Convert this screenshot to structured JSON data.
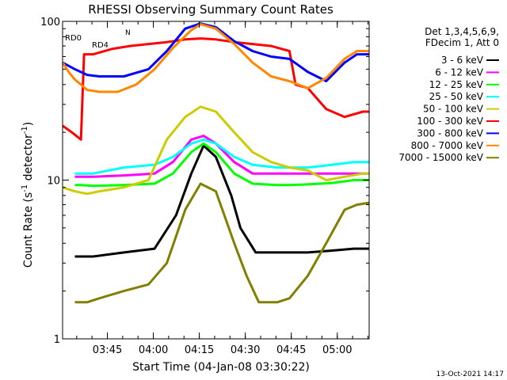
{
  "chart_data": {
    "type": "line",
    "title": "RHESSI Observing Summary Count Rates",
    "xlabel": "Start Time (04-Jan-08 03:30:22)",
    "ylabel": "Count Rate (s⁻¹ detector⁻¹)",
    "ylabel_main": "Count Rate (s",
    "ylabel_sup": "-1",
    "ylabel_tail": " detector",
    "ylabel_sup2": "-1",
    "ylabel_end": ")",
    "yscale": "log",
    "ylim": [
      1,
      100
    ],
    "xlim_minutes": [
      0,
      100
    ],
    "y_tick_labels": [
      "1",
      "10",
      "100"
    ],
    "x_tick_labels": [
      "03:45",
      "04:00",
      "04:15",
      "04:30",
      "04:45",
      "05:00"
    ],
    "x_tick_minutes": [
      14.6,
      29.6,
      44.6,
      59.6,
      74.6,
      89.6
    ],
    "legend_header": [
      "Det 1,3,4,5,6,9,",
      "FDecim 1, Att 0"
    ],
    "legend_placement": "right",
    "flag_labels": [
      "RD0",
      "RD4",
      "N"
    ],
    "date_stamp": "13-Oct-2021 14:17",
    "series": [
      {
        "name": "3 - 6 keV",
        "color": "#000000",
        "x": [
          4,
          10,
          20,
          30,
          37,
          42,
          46,
          50,
          55,
          58,
          63,
          70,
          74,
          80,
          88,
          95,
          100
        ],
        "y": [
          3.3,
          3.3,
          3.5,
          3.7,
          6,
          11,
          16.5,
          14,
          8,
          5,
          3.5,
          3.5,
          3.5,
          3.5,
          3.6,
          3.7,
          3.7
        ]
      },
      {
        "name": "6 - 12 keV",
        "color": "#ff00ff",
        "x": [
          4,
          10,
          20,
          30,
          36,
          42,
          46,
          50,
          56,
          62,
          70,
          74,
          80,
          88,
          95,
          100
        ],
        "y": [
          10.5,
          10.5,
          10.7,
          11,
          13,
          18,
          19,
          17,
          13,
          11,
          11,
          11,
          11,
          11,
          11,
          11
        ]
      },
      {
        "name": "12 - 25 keV",
        "color": "#00ff00",
        "x": [
          4,
          6,
          10,
          20,
          30,
          36,
          42,
          46,
          50,
          56,
          62,
          70,
          74,
          80,
          88,
          95,
          100
        ],
        "y": [
          9.3,
          9.3,
          9.2,
          9.3,
          9.5,
          11,
          15,
          17,
          15,
          11,
          9.5,
          9.3,
          9.3,
          9.4,
          9.6,
          10,
          10
        ]
      },
      {
        "name": "25 - 50 keV",
        "color": "#00ffff",
        "x": [
          4,
          10,
          20,
          30,
          36,
          42,
          46,
          50,
          56,
          62,
          70,
          74,
          80,
          88,
          95,
          100
        ],
        "y": [
          11,
          11,
          12,
          12.5,
          14,
          17,
          18,
          17,
          14,
          12.5,
          12,
          12,
          12,
          12.5,
          13,
          13
        ]
      },
      {
        "name": "50 - 100 keV",
        "color": "#cccc00",
        "x": [
          0,
          4,
          8,
          12,
          20,
          28,
          34,
          40,
          45,
          50,
          56,
          62,
          68,
          74,
          80,
          86,
          92,
          98,
          100
        ],
        "y": [
          9,
          8.5,
          8.2,
          8.5,
          9,
          10,
          18,
          25,
          29,
          27,
          20,
          15,
          13,
          12,
          11.5,
          10,
          10.5,
          11,
          11
        ]
      },
      {
        "name": "100 - 300 keV",
        "color": "#ff0000",
        "x": [
          0,
          3,
          6,
          7,
          10,
          16,
          22,
          28,
          34,
          40,
          45,
          50,
          56,
          62,
          68,
          74,
          76,
          80,
          86,
          92,
          98,
          100
        ],
        "y": [
          22,
          20,
          18,
          62,
          62,
          67,
          70,
          72,
          74,
          77,
          78,
          77,
          74,
          72,
          70,
          65,
          40,
          38,
          28,
          25,
          27,
          27
        ]
      },
      {
        "name": "300 - 800 keV",
        "color": "#0000ff",
        "x": [
          0,
          4,
          8,
          12,
          20,
          28,
          34,
          40,
          45,
          50,
          56,
          62,
          68,
          74,
          80,
          86,
          92,
          96,
          100
        ],
        "y": [
          55,
          50,
          46,
          45,
          45,
          50,
          65,
          90,
          97,
          92,
          75,
          65,
          60,
          58,
          48,
          42,
          55,
          62,
          62
        ]
      },
      {
        "name": "800 - 7000 keV",
        "color": "#ff8800",
        "x": [
          0,
          2,
          4,
          6,
          8,
          12,
          18,
          24,
          30,
          36,
          42,
          45,
          50,
          56,
          62,
          68,
          74,
          80,
          86,
          92,
          96,
          100
        ],
        "y": [
          55,
          48,
          43,
          40,
          37,
          36,
          36,
          40,
          50,
          68,
          88,
          96,
          90,
          72,
          55,
          45,
          42,
          38,
          44,
          58,
          65,
          65
        ]
      },
      {
        "name": "7000 - 15000 keV",
        "color": "#808000",
        "x": [
          4,
          8,
          12,
          20,
          28,
          34,
          40,
          45,
          50,
          56,
          60,
          64,
          70,
          74,
          80,
          86,
          92,
          96,
          100
        ],
        "y": [
          1.7,
          1.7,
          1.8,
          2.0,
          2.2,
          3.0,
          6.5,
          9.5,
          8.5,
          4.0,
          2.5,
          1.7,
          1.7,
          1.8,
          2.5,
          4.0,
          6.5,
          7.0,
          7.2
        ]
      }
    ]
  }
}
